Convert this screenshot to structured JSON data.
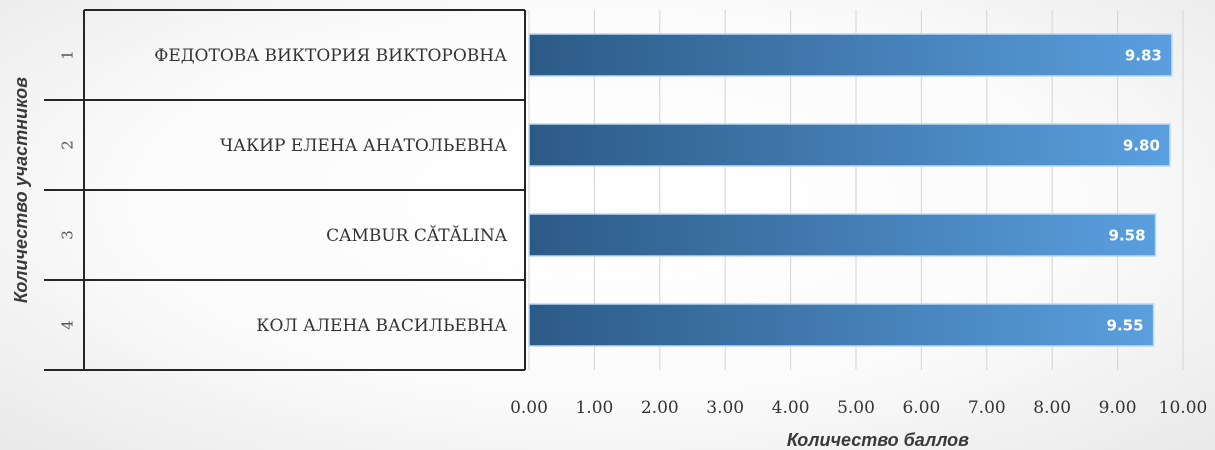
{
  "chart_data": {
    "type": "bar",
    "orientation": "horizontal",
    "categories": [
      "ФЕДОТОВА ВИКТОРИЯ ВИКТОРОВНА",
      "ЧАКИР ЕЛЕНА АНАТОЛЬЕВНА",
      "CAMBUR CĂTĂLINA",
      "КОЛ АЛЕНА ВАСИЛЬЕВНА"
    ],
    "ranks": [
      "1",
      "2",
      "3",
      "4"
    ],
    "values": [
      9.83,
      9.8,
      9.58,
      9.55
    ],
    "data_labels": [
      "9.83",
      "9.80",
      "9.58",
      "9.55"
    ],
    "xlabel": "Количество баллов",
    "ylabel": "Количество участников",
    "xlim": [
      0,
      10
    ],
    "x_ticks": [
      "0.00",
      "1.00",
      "2.00",
      "3.00",
      "4.00",
      "5.00",
      "6.00",
      "7.00",
      "8.00",
      "9.00",
      "10.00"
    ],
    "grid": true,
    "colors": {
      "bar_dark": "#2c5a86",
      "bar_light": "#5a9fdf",
      "grid": "#d4d4d4",
      "table_border": "#262626"
    }
  }
}
